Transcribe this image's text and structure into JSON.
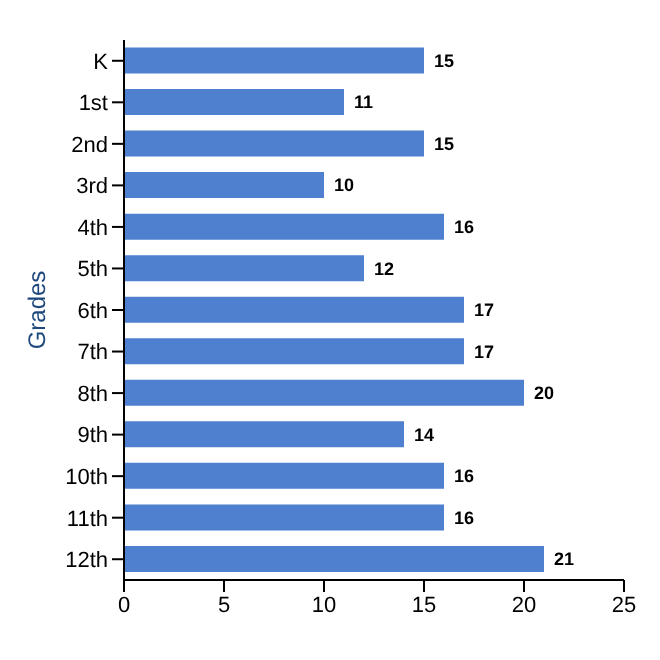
{
  "chart_data": {
    "type": "bar",
    "orientation": "horizontal",
    "ylabel": "Grades",
    "categories": [
      "K",
      "1st",
      "2nd",
      "3rd",
      "4th",
      "5th",
      "6th",
      "7th",
      "8th",
      "9th",
      "10th",
      "11th",
      "12th"
    ],
    "values": [
      15,
      11,
      15,
      10,
      16,
      12,
      17,
      17,
      20,
      14,
      16,
      16,
      21
    ],
    "color": "#4f7fcf",
    "xlim": [
      0,
      25
    ],
    "xticks": [
      0,
      5,
      10,
      15,
      20,
      25
    ],
    "grid": false,
    "legend": false,
    "data_labels": true
  }
}
